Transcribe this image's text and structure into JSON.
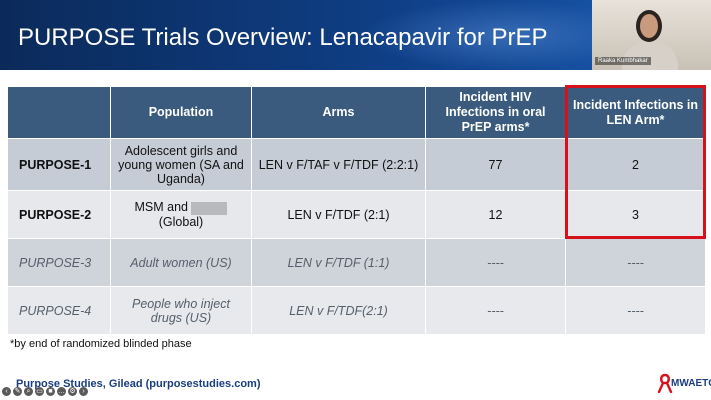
{
  "slide": {
    "title": "PURPOSE Trials Overview: Lenacapavir for PrEP",
    "video": {
      "speaker_name": "Raaka Kumbhakar"
    },
    "table": {
      "headers": [
        "",
        "Population",
        "Arms",
        "Incident HIV Infections in oral PrEP arms*",
        "Incident Infections in LEN Arm*"
      ],
      "rows": [
        {
          "trial": "PURPOSE-1",
          "population": "Adolescent girls and young women (SA and Uganda)",
          "arms": "LEN v F/TAF v F/TDF (2:2:1)",
          "oral": "77",
          "len": "2"
        },
        {
          "trial": "PURPOSE-2",
          "population_prefix": "MSM and",
          "population_suffix": "(Global)",
          "arms": "LEN v F/TDF (2:1)",
          "oral": "12",
          "len": "3"
        },
        {
          "trial": "PURPOSE-3",
          "population": "Adult women (US)",
          "arms": "LEN v F/TDF (1:1)",
          "oral": "----",
          "len": "----"
        },
        {
          "trial": "PURPOSE-4",
          "population": "People who inject drugs (US)",
          "arms": "LEN v F/TDF(2:1)",
          "oral": "----",
          "len": "----"
        }
      ],
      "highlight_color": "#d6111b"
    },
    "footnote": "*by end of randomized blinded phase",
    "source": "Purpose Studies, Gilead (purposestudies.com)",
    "logo_text": "MWAETC"
  },
  "colors": {
    "header_bg": "#0f3f86",
    "table_header": "#3a5a7e",
    "accent_red": "#d6111b"
  },
  "toolbar_icons": [
    "back-icon",
    "pen-icon",
    "search-icon",
    "captions-icon",
    "camera-icon",
    "chat-icon",
    "settings-icon",
    "forward-icon"
  ]
}
